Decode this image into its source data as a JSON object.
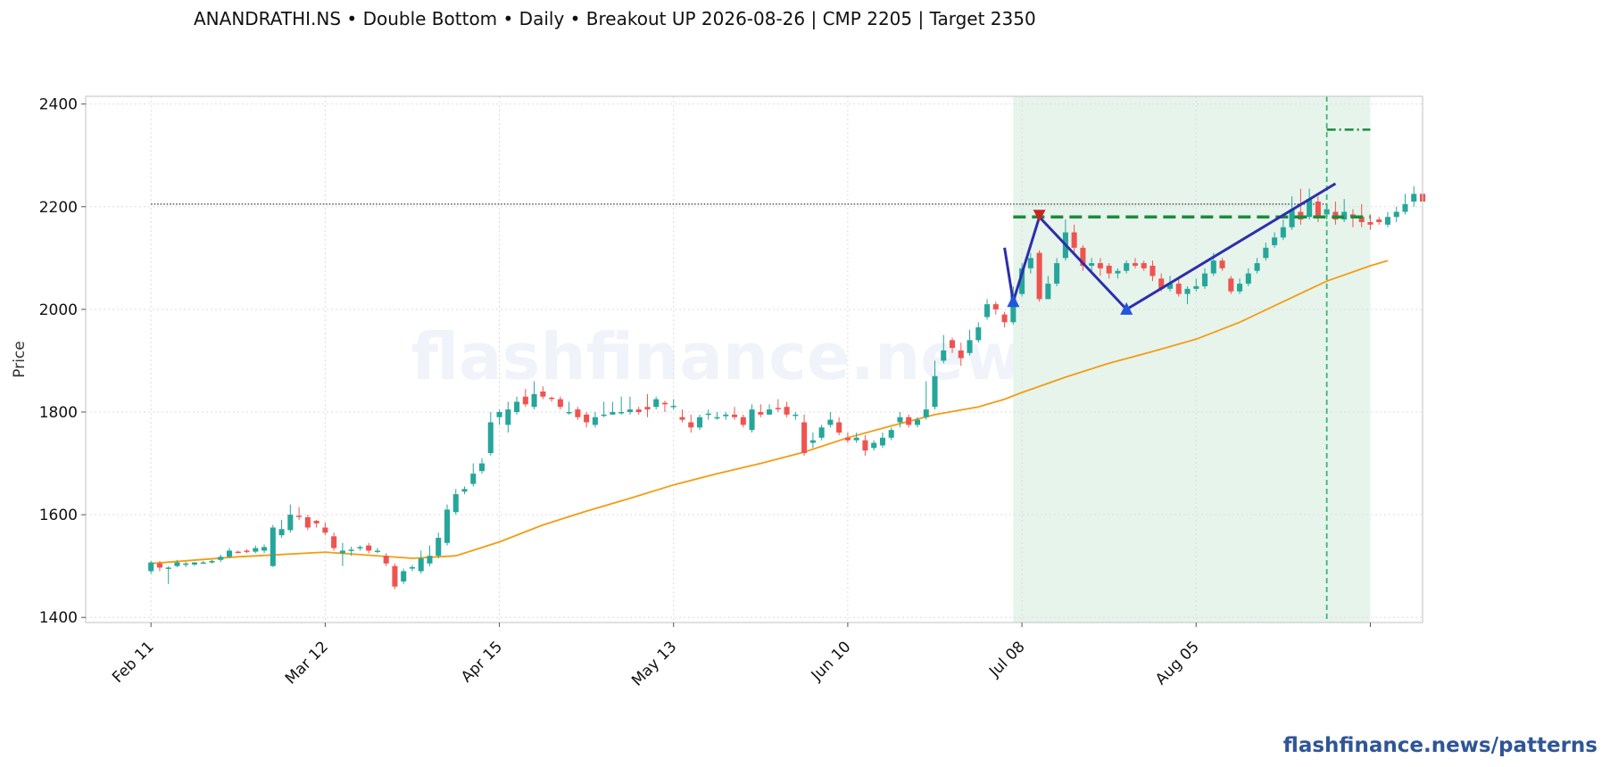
{
  "title": "ANANDRATHI.NS  •  Double Bottom  •  Daily  •  Breakout UP 2026-08-26  |  CMP 2205  |  Target 2350",
  "watermark": "flashfinance.news",
  "footer": "flashfinance.news/patterns",
  "colors": {
    "up": "#26a69a",
    "down": "#ef5350",
    "ma": "#f39c12",
    "pattern_line": "#2e2eaa",
    "neckline": "#1a8c3c",
    "target": "#1a8c3c",
    "marker_low": "#2255dd",
    "marker_high": "#cc2222",
    "highlight": "#e6f4ec",
    "cmp_line": "#333333",
    "breakout_line": "#3cb37a"
  },
  "chart_data": {
    "type": "candlestick",
    "ylabel": "Price",
    "ylim": [
      1390,
      2415
    ],
    "yticks": [
      1400,
      1600,
      1800,
      2000,
      2200,
      2400
    ],
    "grid": true,
    "x_tick_labels": [
      "Feb 11",
      "Mar 12",
      "Apr 15",
      "May 13",
      "Jun 10",
      "Jul 08",
      "Aug 05"
    ],
    "x_tick_index": [
      0,
      20,
      40,
      60,
      80,
      100,
      120
    ],
    "candles": [
      [
        1490,
        1507,
        1485,
        1510
      ],
      [
        1505,
        1497,
        1490,
        1510
      ],
      [
        1497,
        1497,
        1465,
        1500
      ],
      [
        1500,
        1507,
        1498,
        1512
      ],
      [
        1505,
        1505,
        1498,
        1508
      ],
      [
        1503,
        1507,
        1500,
        1508
      ],
      [
        1507,
        1507,
        1505,
        1510
      ],
      [
        1507,
        1510,
        1505,
        1512
      ],
      [
        1512,
        1518,
        1508,
        1522
      ],
      [
        1518,
        1530,
        1515,
        1535
      ],
      [
        1528,
        1527,
        1525,
        1530
      ],
      [
        1530,
        1528,
        1525,
        1533
      ],
      [
        1528,
        1535,
        1525,
        1540
      ],
      [
        1530,
        1537,
        1525,
        1542
      ],
      [
        1500,
        1575,
        1498,
        1580
      ],
      [
        1560,
        1572,
        1555,
        1590
      ],
      [
        1570,
        1600,
        1565,
        1620
      ],
      [
        1598,
        1597,
        1590,
        1615
      ],
      [
        1595,
        1575,
        1570,
        1600
      ],
      [
        1588,
        1583,
        1575,
        1590
      ],
      [
        1575,
        1565,
        1560,
        1585
      ],
      [
        1558,
        1535,
        1530,
        1565
      ],
      [
        1525,
        1530,
        1500,
        1545
      ],
      [
        1532,
        1532,
        1520,
        1538
      ],
      [
        1535,
        1537,
        1530,
        1540
      ],
      [
        1540,
        1530,
        1525,
        1545
      ],
      [
        1530,
        1530,
        1525,
        1535
      ],
      [
        1520,
        1505,
        1500,
        1525
      ],
      [
        1500,
        1460,
        1455,
        1505
      ],
      [
        1470,
        1490,
        1465,
        1495
      ],
      [
        1495,
        1498,
        1490,
        1502
      ],
      [
        1490,
        1515,
        1485,
        1530
      ],
      [
        1505,
        1520,
        1500,
        1540
      ],
      [
        1520,
        1555,
        1515,
        1565
      ],
      [
        1545,
        1610,
        1540,
        1620
      ],
      [
        1605,
        1640,
        1600,
        1650
      ],
      [
        1645,
        1650,
        1640,
        1655
      ],
      [
        1660,
        1680,
        1655,
        1700
      ],
      [
        1685,
        1700,
        1680,
        1710
      ],
      [
        1720,
        1780,
        1715,
        1800
      ],
      [
        1790,
        1800,
        1775,
        1805
      ],
      [
        1775,
        1805,
        1760,
        1820
      ],
      [
        1800,
        1820,
        1795,
        1830
      ],
      [
        1830,
        1815,
        1810,
        1845
      ],
      [
        1810,
        1835,
        1805,
        1860
      ],
      [
        1840,
        1830,
        1825,
        1850
      ],
      [
        1828,
        1826,
        1820,
        1830
      ],
      [
        1825,
        1810,
        1805,
        1830
      ],
      [
        1800,
        1800,
        1795,
        1820
      ],
      [
        1805,
        1790,
        1785,
        1810
      ],
      [
        1795,
        1780,
        1770,
        1800
      ],
      [
        1775,
        1790,
        1770,
        1800
      ],
      [
        1795,
        1795,
        1790,
        1820
      ],
      [
        1795,
        1800,
        1795,
        1820
      ],
      [
        1798,
        1800,
        1795,
        1830
      ],
      [
        1800,
        1805,
        1795,
        1830
      ],
      [
        1805,
        1800,
        1795,
        1810
      ],
      [
        1810,
        1805,
        1790,
        1835
      ],
      [
        1810,
        1825,
        1805,
        1830
      ],
      [
        1818,
        1815,
        1800,
        1822
      ],
      [
        1812,
        1812,
        1805,
        1825
      ],
      [
        1790,
        1785,
        1780,
        1805
      ],
      [
        1780,
        1770,
        1760,
        1795
      ],
      [
        1770,
        1790,
        1765,
        1795
      ],
      [
        1795,
        1797,
        1785,
        1805
      ],
      [
        1790,
        1790,
        1785,
        1800
      ],
      [
        1792,
        1795,
        1785,
        1800
      ],
      [
        1795,
        1790,
        1785,
        1810
      ],
      [
        1790,
        1775,
        1770,
        1795
      ],
      [
        1765,
        1805,
        1760,
        1815
      ],
      [
        1800,
        1795,
        1790,
        1815
      ],
      [
        1795,
        1805,
        1795,
        1815
      ],
      [
        1808,
        1807,
        1800,
        1825
      ],
      [
        1810,
        1795,
        1790,
        1820
      ],
      [
        1795,
        1795,
        1785,
        1800
      ],
      [
        1780,
        1720,
        1715,
        1795
      ],
      [
        1740,
        1745,
        1730,
        1760
      ],
      [
        1750,
        1770,
        1745,
        1775
      ],
      [
        1775,
        1785,
        1770,
        1800
      ],
      [
        1780,
        1760,
        1755,
        1790
      ],
      [
        1750,
        1745,
        1740,
        1760
      ],
      [
        1745,
        1750,
        1740,
        1760
      ],
      [
        1745,
        1725,
        1715,
        1755
      ],
      [
        1730,
        1740,
        1725,
        1745
      ],
      [
        1735,
        1750,
        1730,
        1760
      ],
      [
        1750,
        1765,
        1745,
        1770
      ],
      [
        1780,
        1790,
        1770,
        1800
      ],
      [
        1790,
        1775,
        1770,
        1795
      ],
      [
        1775,
        1785,
        1770,
        1790
      ],
      [
        1790,
        1805,
        1785,
        1860
      ],
      [
        1810,
        1870,
        1805,
        1900
      ],
      [
        1900,
        1920,
        1895,
        1950
      ],
      [
        1940,
        1925,
        1915,
        1945
      ],
      [
        1920,
        1905,
        1890,
        1935
      ],
      [
        1915,
        1940,
        1910,
        1960
      ],
      [
        1940,
        1965,
        1935,
        1975
      ],
      [
        1985,
        2010,
        1980,
        2020
      ],
      [
        2010,
        2000,
        1990,
        2015
      ],
      [
        1990,
        1975,
        1965,
        1995
      ],
      [
        1975,
        2030,
        1970,
        2045
      ],
      [
        2030,
        2080,
        2025,
        2090
      ],
      [
        2080,
        2100,
        2070,
        2110
      ],
      [
        2110,
        2020,
        2015,
        2115
      ],
      [
        2020,
        2050,
        2020,
        2065
      ],
      [
        2050,
        2090,
        2045,
        2100
      ],
      [
        2100,
        2150,
        2095,
        2175
      ],
      [
        2150,
        2120,
        2110,
        2165
      ],
      [
        2120,
        2085,
        2075,
        2125
      ],
      [
        2085,
        2090,
        2075,
        2100
      ],
      [
        2090,
        2080,
        2065,
        2100
      ],
      [
        2085,
        2070,
        2060,
        2090
      ],
      [
        2070,
        2075,
        2060,
        2080
      ],
      [
        2075,
        2090,
        2070,
        2095
      ],
      [
        2090,
        2085,
        2080,
        2100
      ],
      [
        2090,
        2080,
        2075,
        2095
      ],
      [
        2085,
        2065,
        2055,
        2095
      ],
      [
        2060,
        2040,
        2035,
        2070
      ],
      [
        2040,
        2050,
        2035,
        2065
      ],
      [
        2050,
        2030,
        2025,
        2060
      ],
      [
        2030,
        2040,
        2010,
        2045
      ],
      [
        2040,
        2045,
        2035,
        2060
      ],
      [
        2045,
        2070,
        2040,
        2080
      ],
      [
        2070,
        2095,
        2065,
        2110
      ],
      [
        2095,
        2080,
        2075,
        2100
      ],
      [
        2060,
        2035,
        2030,
        2065
      ],
      [
        2035,
        2050,
        2030,
        2060
      ],
      [
        2050,
        2070,
        2045,
        2080
      ],
      [
        2075,
        2090,
        2070,
        2100
      ],
      [
        2100,
        2120,
        2095,
        2130
      ],
      [
        2125,
        2140,
        2120,
        2150
      ],
      [
        2140,
        2160,
        2135,
        2175
      ],
      [
        2160,
        2195,
        2155,
        2220
      ],
      [
        2190,
        2175,
        2165,
        2235
      ],
      [
        2180,
        2215,
        2175,
        2235
      ],
      [
        2210,
        2180,
        2170,
        2220
      ],
      [
        2185,
        2195,
        2175,
        2205
      ],
      [
        2190,
        2175,
        2165,
        2210
      ],
      [
        2175,
        2190,
        2170,
        2215
      ],
      [
        2185,
        2180,
        2160,
        2195
      ],
      [
        2180,
        2170,
        2160,
        2205
      ],
      [
        2170,
        2165,
        2155,
        2185
      ],
      [
        2175,
        2170,
        2165,
        2180
      ],
      [
        2165,
        2180,
        2160,
        2190
      ],
      [
        2180,
        2190,
        2170,
        2200
      ],
      [
        2190,
        2205,
        2185,
        2225
      ],
      [
        2210,
        2225,
        2200,
        2240
      ],
      [
        2225,
        2210,
        2200,
        2235
      ]
    ],
    "ma_points": [
      [
        0,
        1505
      ],
      [
        10,
        1518
      ],
      [
        20,
        1527
      ],
      [
        30,
        1515
      ],
      [
        35,
        1520
      ],
      [
        40,
        1547
      ],
      [
        45,
        1580
      ],
      [
        50,
        1607
      ],
      [
        55,
        1632
      ],
      [
        60,
        1658
      ],
      [
        65,
        1680
      ],
      [
        70,
        1700
      ],
      [
        75,
        1722
      ],
      [
        80,
        1750
      ],
      [
        85,
        1773
      ],
      [
        90,
        1795
      ],
      [
        95,
        1810
      ],
      [
        98,
        1825
      ],
      [
        100,
        1838
      ],
      [
        105,
        1868
      ],
      [
        110,
        1895
      ],
      [
        115,
        1918
      ],
      [
        120,
        1942
      ],
      [
        125,
        1975
      ],
      [
        130,
        2015
      ],
      [
        135,
        2055
      ],
      [
        140,
        2085
      ],
      [
        142,
        2095
      ]
    ],
    "pattern_points": [
      [
        98,
        2120
      ],
      [
        99,
        2015
      ],
      [
        102,
        2180
      ],
      [
        112,
        2000
      ],
      [
        136,
        2245
      ]
    ],
    "low_markers": [
      [
        99,
        2015
      ],
      [
        112,
        2000
      ]
    ],
    "high_markers": [
      [
        102,
        2180
      ]
    ],
    "neckline": {
      "y": 2180,
      "x_start": 99,
      "x_end": 140
    },
    "target": {
      "y": 2350,
      "x_start": 135,
      "x_end": 140
    },
    "cmp_line": {
      "y": 2205,
      "x_start": 0,
      "x_end": 135
    },
    "breakout_index": 135,
    "highlight_range": [
      99,
      140
    ],
    "x_range": [
      -7.5,
      146
    ]
  }
}
